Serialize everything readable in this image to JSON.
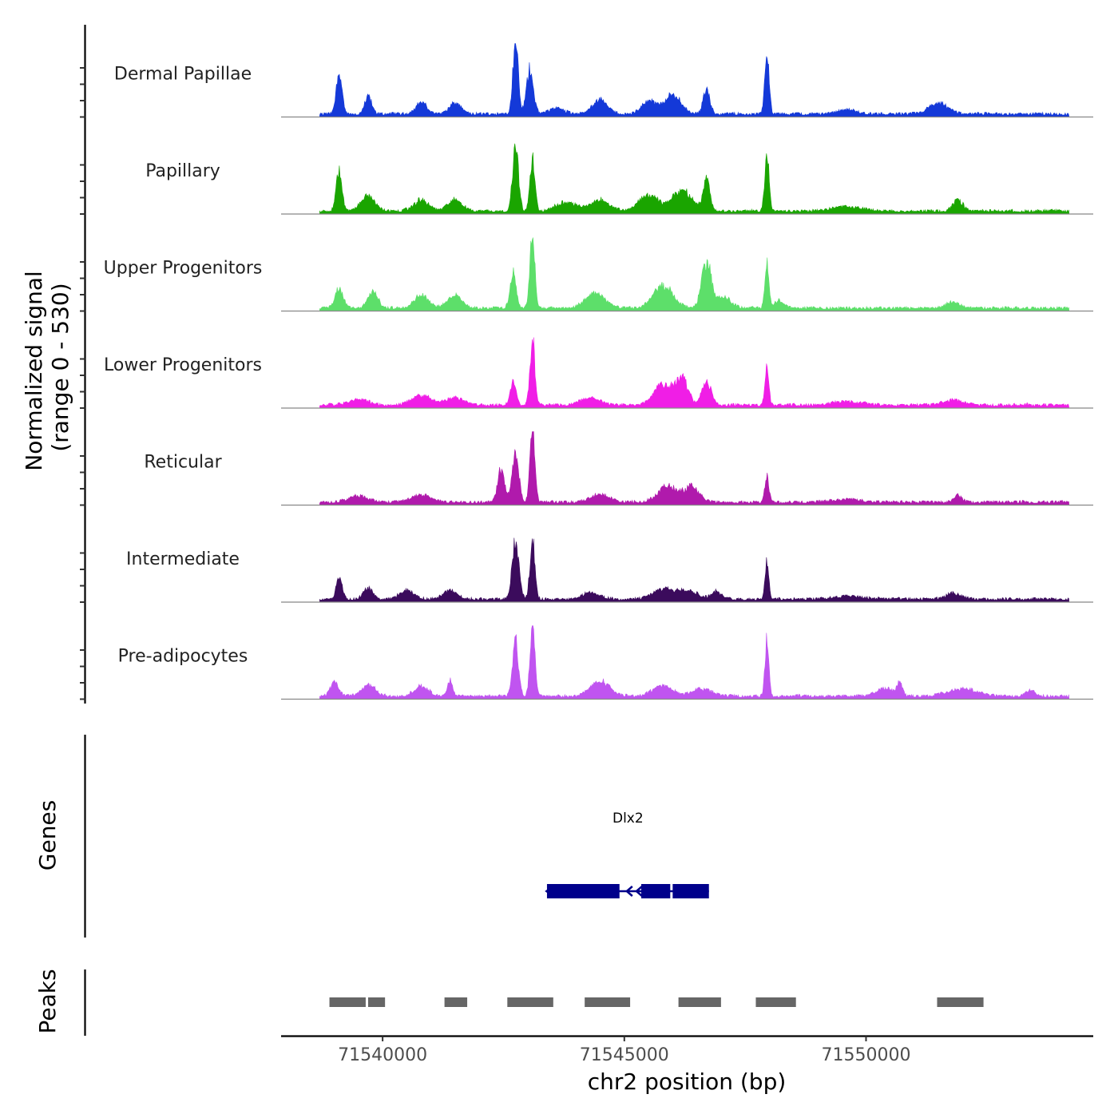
{
  "chart_data": {
    "type": "area",
    "title": "",
    "chromosome": "chr2",
    "xlabel": "chr2 position (bp)",
    "ylabel": "Normalized signal\n(range 0 - 530)",
    "ylabel_lines": [
      "Normalized signal",
      "(range 0 - 530)"
    ],
    "xlim": [
      71537900,
      71554700
    ],
    "ylim": [
      0,
      530
    ],
    "x_ticks": [
      71540000,
      71545000,
      71550000
    ],
    "x_tick_labels": [
      "71540000",
      "71545000",
      "71550000"
    ],
    "signal_range": [
      71538700,
      71554200
    ],
    "baseline_color": "#888888",
    "series": [
      {
        "name": "Dermal Papillae",
        "color": "#1439d8",
        "peaks": [
          [
            71539100,
            0.55,
            60
          ],
          [
            71539700,
            0.25,
            70
          ],
          [
            71540800,
            0.15,
            120
          ],
          [
            71541500,
            0.15,
            120
          ],
          [
            71542750,
            1.0,
            55
          ],
          [
            71543050,
            0.62,
            70
          ],
          [
            71543600,
            0.08,
            150
          ],
          [
            71544500,
            0.2,
            150
          ],
          [
            71545500,
            0.18,
            140
          ],
          [
            71546000,
            0.25,
            180
          ],
          [
            71546700,
            0.32,
            70
          ],
          [
            71547950,
            0.8,
            45
          ],
          [
            71549600,
            0.06,
            200
          ],
          [
            71551500,
            0.14,
            200
          ]
        ]
      },
      {
        "name": "Papillary",
        "color": "#1aa500",
        "peaks": [
          [
            71539100,
            0.55,
            60
          ],
          [
            71539700,
            0.2,
            150
          ],
          [
            71540800,
            0.15,
            150
          ],
          [
            71541500,
            0.15,
            150
          ],
          [
            71542750,
            0.88,
            60
          ],
          [
            71543100,
            0.7,
            50
          ],
          [
            71543800,
            0.12,
            200
          ],
          [
            71544500,
            0.15,
            200
          ],
          [
            71545500,
            0.22,
            200
          ],
          [
            71546200,
            0.28,
            200
          ],
          [
            71546700,
            0.42,
            70
          ],
          [
            71547950,
            0.75,
            45
          ],
          [
            71549600,
            0.06,
            300
          ],
          [
            71551900,
            0.15,
            100
          ]
        ]
      },
      {
        "name": "Upper Progenitors",
        "color": "#5ddf6a",
        "peaks": [
          [
            71539100,
            0.28,
            80
          ],
          [
            71539800,
            0.22,
            100
          ],
          [
            71540800,
            0.18,
            150
          ],
          [
            71541500,
            0.18,
            150
          ],
          [
            71542700,
            0.48,
            60
          ],
          [
            71543100,
            1.0,
            50
          ],
          [
            71544400,
            0.2,
            200
          ],
          [
            71545800,
            0.3,
            200
          ],
          [
            71546700,
            0.62,
            100
          ],
          [
            71547050,
            0.15,
            150
          ],
          [
            71547950,
            0.6,
            40
          ],
          [
            71548200,
            0.1,
            100
          ],
          [
            71551800,
            0.08,
            150
          ]
        ]
      },
      {
        "name": "Lower Progenitors",
        "color": "#f01ee6",
        "peaks": [
          [
            71539500,
            0.08,
            200
          ],
          [
            71540800,
            0.13,
            200
          ],
          [
            71541500,
            0.1,
            200
          ],
          [
            71542700,
            0.32,
            60
          ],
          [
            71543100,
            0.9,
            50
          ],
          [
            71544300,
            0.1,
            200
          ],
          [
            71545800,
            0.28,
            200
          ],
          [
            71546200,
            0.35,
            120
          ],
          [
            71546700,
            0.3,
            100
          ],
          [
            71547950,
            0.55,
            40
          ],
          [
            71549600,
            0.05,
            300
          ],
          [
            71551800,
            0.07,
            200
          ]
        ]
      },
      {
        "name": "Reticular",
        "color": "#b01aac",
        "peaks": [
          [
            71539500,
            0.08,
            200
          ],
          [
            71540800,
            0.1,
            200
          ],
          [
            71542450,
            0.45,
            70
          ],
          [
            71542750,
            0.65,
            70
          ],
          [
            71543100,
            1.0,
            50
          ],
          [
            71544500,
            0.1,
            200
          ],
          [
            71545900,
            0.22,
            200
          ],
          [
            71546400,
            0.2,
            150
          ],
          [
            71547950,
            0.38,
            40
          ],
          [
            71549600,
            0.04,
            300
          ],
          [
            71551900,
            0.09,
            80
          ]
        ]
      },
      {
        "name": "Intermediate",
        "color": "#3b0b5c",
        "peaks": [
          [
            71539100,
            0.28,
            60
          ],
          [
            71539700,
            0.15,
            100
          ],
          [
            71540500,
            0.12,
            150
          ],
          [
            71541400,
            0.12,
            150
          ],
          [
            71542750,
            0.78,
            70
          ],
          [
            71543100,
            0.82,
            50
          ],
          [
            71544300,
            0.08,
            200
          ],
          [
            71545800,
            0.14,
            200
          ],
          [
            71546300,
            0.13,
            200
          ],
          [
            71546900,
            0.1,
            100
          ],
          [
            71547950,
            0.52,
            40
          ],
          [
            71549600,
            0.04,
            300
          ],
          [
            71551800,
            0.08,
            150
          ]
        ]
      },
      {
        "name": "Pre-adipocytes",
        "color": "#c054f0",
        "peaks": [
          [
            71539000,
            0.2,
            80
          ],
          [
            71539700,
            0.15,
            150
          ],
          [
            71540800,
            0.13,
            150
          ],
          [
            71541400,
            0.22,
            50
          ],
          [
            71542750,
            0.75,
            60
          ],
          [
            71543100,
            0.95,
            50
          ],
          [
            71544500,
            0.2,
            200
          ],
          [
            71545800,
            0.15,
            200
          ],
          [
            71546600,
            0.1,
            200
          ],
          [
            71547950,
            0.78,
            40
          ],
          [
            71550400,
            0.1,
            200
          ],
          [
            71550700,
            0.16,
            50
          ],
          [
            71552000,
            0.1,
            300
          ],
          [
            71553400,
            0.08,
            100
          ]
        ]
      }
    ],
    "genes": {
      "title": "Genes",
      "color": "#00008b",
      "items": [
        {
          "name": "Dlx2",
          "strand": "-",
          "start": 71543400,
          "end": 71546750,
          "exons": [
            [
              71543400,
              71544900
            ],
            [
              71545350,
              71545950
            ],
            [
              71546000,
              71546750
            ]
          ]
        }
      ]
    },
    "peaks_track": {
      "title": "Peaks",
      "color": "#666666",
      "regions": [
        [
          71538900,
          71539650
        ],
        [
          71539700,
          71540050
        ],
        [
          71541280,
          71541750
        ],
        [
          71542580,
          71543530
        ],
        [
          71544180,
          71545120
        ],
        [
          71546120,
          71547000
        ],
        [
          71547720,
          71548550
        ],
        [
          71551470,
          71552430
        ]
      ]
    }
  }
}
